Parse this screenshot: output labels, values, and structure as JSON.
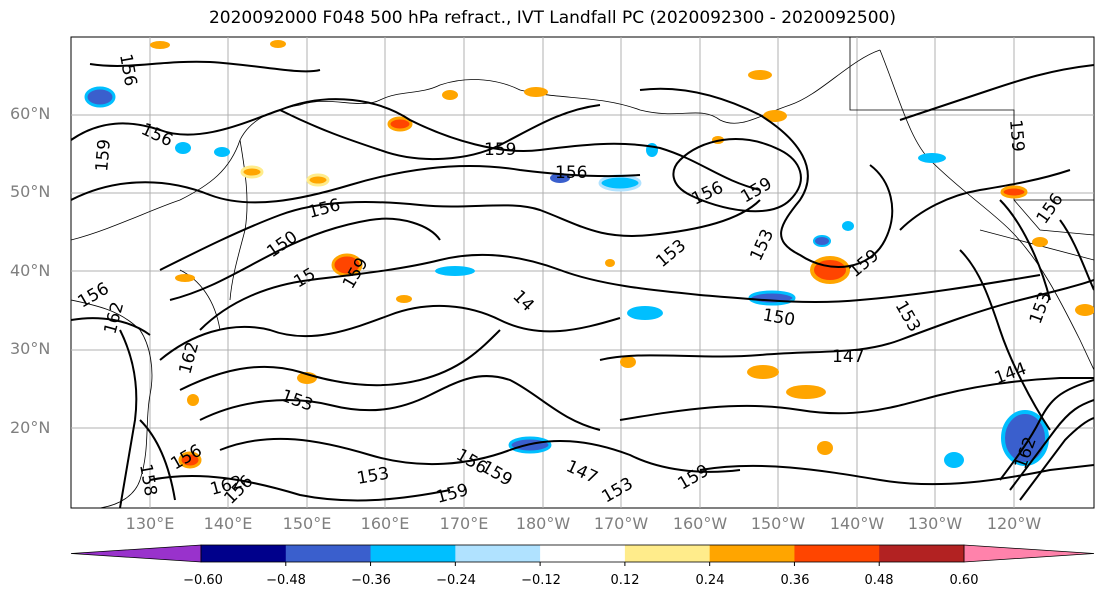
{
  "title": "2020092000 F048 500 hPa refract., IVT Landfall PC (2020092300 - 2020092500)",
  "lat_labels": [
    "60°N",
    "50°N",
    "40°N",
    "30°N",
    "20°N"
  ],
  "lon_labels": [
    "130°E",
    "140°E",
    "150°E",
    "160°E",
    "170°E",
    "180°W",
    "170°W",
    "160°W",
    "150°W",
    "140°W",
    "130°W",
    "120°W"
  ],
  "contour_labels": [
    "156",
    "156",
    "159",
    "156",
    "159",
    "156",
    "159",
    "156",
    "150",
    "15",
    "159",
    "153",
    "153",
    "159",
    "153",
    "150",
    "147",
    "144",
    "153",
    "14",
    "162",
    "159",
    "153",
    "156",
    "156",
    "159",
    "147",
    "153",
    "156",
    "159",
    "162",
    "156",
    "153",
    "156",
    "159",
    "162",
    "158",
    "162"
  ],
  "colorbar": {
    "ticks": [
      "−0.60",
      "−0.48",
      "−0.36",
      "−0.24",
      "−0.12",
      "0.12",
      "0.24",
      "0.36",
      "0.48",
      "0.60"
    ],
    "colors": [
      "#9932cc",
      "#00008b",
      "#3a5fcd",
      "#00bfff",
      "#b0e2ff",
      "#ffffff",
      "#ffec8b",
      "#ffa500",
      "#ff4500",
      "#b22222",
      "#ff82ab"
    ]
  },
  "colors": {
    "land_outline": "#000000",
    "contour": "#000000",
    "grid": "#b0b0b0",
    "axis_text": "#7f7f7f"
  }
}
